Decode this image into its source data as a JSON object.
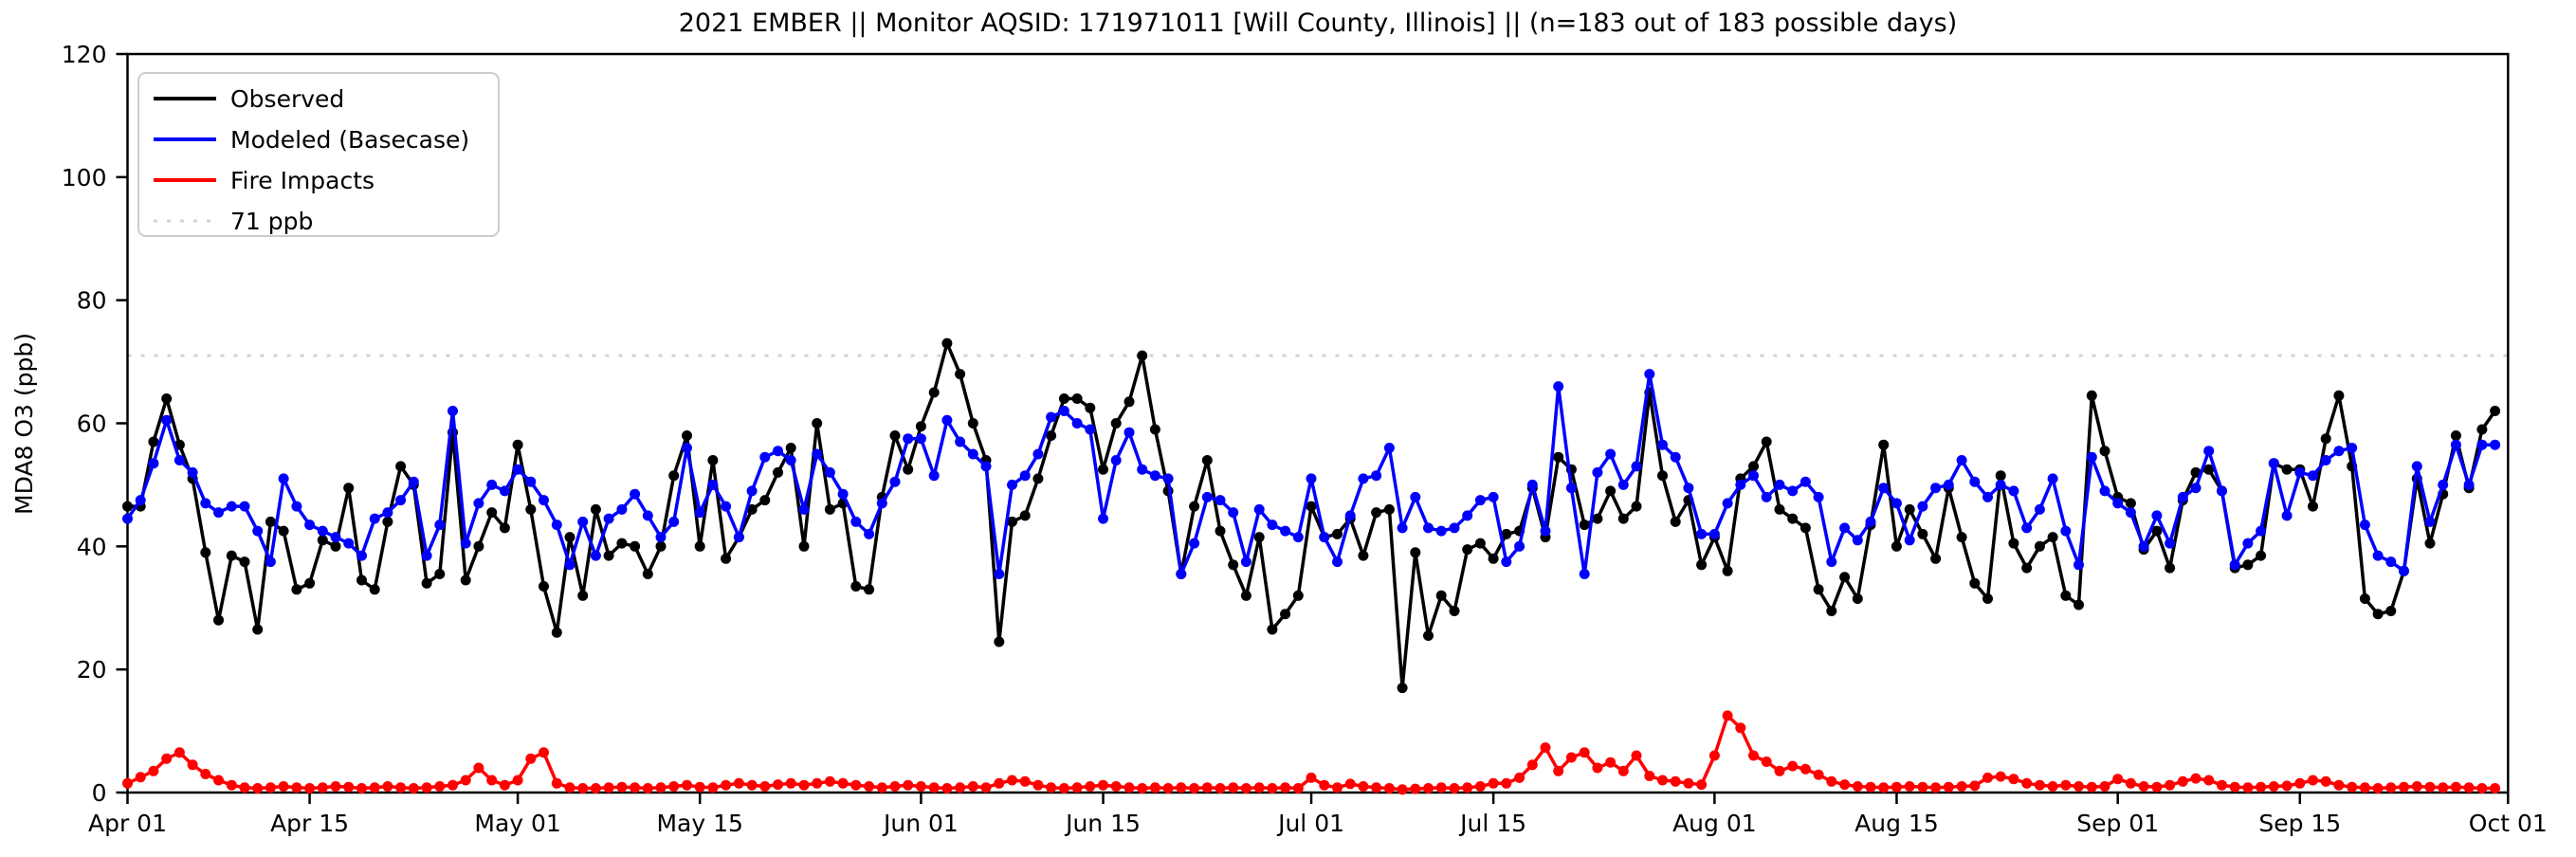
{
  "page": {
    "background": "#ffffff"
  },
  "chart_data": {
    "type": "line",
    "title": "2021 EMBER || Monitor AQSID: 171971011 [Will County, Illinois] || (n=183 out of 183 possible days)",
    "xlabel": "",
    "ylabel": "MDA8 O3 (ppb)",
    "ylim": [
      0,
      120
    ],
    "y_ticks": [
      0,
      20,
      40,
      60,
      80,
      100,
      120
    ],
    "n_days": 183,
    "x_ticks": [
      {
        "day": 0,
        "label": "Apr 01"
      },
      {
        "day": 14,
        "label": "Apr 15"
      },
      {
        "day": 30,
        "label": "May 01"
      },
      {
        "day": 44,
        "label": "May 15"
      },
      {
        "day": 61,
        "label": "Jun 01"
      },
      {
        "day": 75,
        "label": "Jun 15"
      },
      {
        "day": 91,
        "label": "Jul 01"
      },
      {
        "day": 105,
        "label": "Jul 15"
      },
      {
        "day": 122,
        "label": "Aug 01"
      },
      {
        "day": 136,
        "label": "Aug 15"
      },
      {
        "day": 153,
        "label": "Sep 01"
      },
      {
        "day": 167,
        "label": "Sep 15"
      },
      {
        "day": 183,
        "label": "Oct 01"
      }
    ],
    "threshold": {
      "value": 71,
      "label": "71 ppb",
      "color": "#d3d3d3"
    },
    "legend": [
      {
        "label": "Observed",
        "color": "#000000",
        "style": "solid"
      },
      {
        "label": "Modeled (Basecase)",
        "color": "#0000ff",
        "style": "solid"
      },
      {
        "label": "Fire Impacts",
        "color": "#ff0000",
        "style": "solid"
      },
      {
        "label": "71 ppb",
        "color": "#d3d3d3",
        "style": "dotted"
      }
    ],
    "grid": "off",
    "legend_position": "upper-left",
    "series": [
      {
        "name": "Observed",
        "color": "#000000",
        "values": [
          46.5,
          46.5,
          57,
          64,
          56.5,
          51,
          39,
          28,
          38.5,
          37.5,
          26.5,
          44,
          42.5,
          33,
          34,
          41,
          40,
          49.5,
          34.5,
          33,
          44,
          53,
          50,
          34,
          35.5,
          58.5,
          34.5,
          40,
          45.5,
          43,
          56.5,
          46,
          33.5,
          26,
          41.5,
          32,
          46,
          38.5,
          40.5,
          40,
          35.5,
          40,
          51.5,
          58,
          40,
          54,
          38,
          41.5,
          46,
          47.5,
          52,
          56,
          40,
          60,
          46,
          47,
          33.5,
          33,
          48,
          58,
          52.5,
          59.5,
          65,
          73,
          68,
          60,
          54,
          24.5,
          44,
          45,
          51,
          58,
          64,
          64,
          62.5,
          52.5,
          60,
          63.5,
          71,
          59,
          49,
          35.5,
          46.5,
          54,
          42.5,
          37,
          32,
          41.5,
          26.5,
          29,
          32,
          46.5,
          41.5,
          42,
          44.5,
          38.5,
          45.5,
          46,
          17,
          39,
          25.5,
          32,
          29.5,
          39.5,
          40.5,
          38,
          42,
          42.5,
          49.5,
          41.5,
          54.5,
          52.5,
          43.5,
          44.5,
          49,
          44.5,
          46.5,
          65,
          51.5,
          44,
          47.5,
          37,
          41.5,
          36,
          51,
          53,
          57,
          46,
          44.5,
          43,
          33,
          29.5,
          35,
          31.5,
          43.5,
          56.5,
          40,
          46,
          42,
          38,
          49.5,
          41.5,
          34,
          31.5,
          51.5,
          40.5,
          36.5,
          40,
          41.5,
          32,
          30.5,
          64.5,
          55.5,
          48,
          47,
          39.5,
          42.5,
          36.5,
          47.5,
          52,
          52.5,
          49,
          36.5,
          37,
          38.5,
          53.5,
          52.5,
          52.5,
          46.5,
          57.5,
          64.5,
          53,
          31.5,
          29,
          29.5,
          36,
          51,
          40.5,
          48.5,
          58,
          49.5,
          59,
          62
        ]
      },
      {
        "name": "Modeled (Basecase)",
        "color": "#0000ff",
        "values": [
          44.5,
          47.5,
          53.5,
          60.5,
          54,
          52,
          47,
          45.5,
          46.5,
          46.5,
          42.5,
          37.5,
          51,
          46.5,
          43.5,
          42.5,
          41.5,
          40.5,
          38.5,
          44.5,
          45.5,
          47.5,
          50.5,
          38.5,
          43.5,
          62,
          40.5,
          47,
          50,
          49,
          52.5,
          50.5,
          47.5,
          43.5,
          37,
          44,
          38.5,
          44.5,
          46,
          48.5,
          45,
          41.5,
          44,
          56,
          45.5,
          50,
          46.5,
          41.5,
          49,
          54.5,
          55.5,
          54,
          46,
          55,
          52,
          48.5,
          44,
          42,
          47,
          50.5,
          57.5,
          57.5,
          51.5,
          60.5,
          57,
          55,
          53,
          35.5,
          50,
          51.5,
          55,
          61,
          62,
          60,
          59,
          44.5,
          54,
          58.5,
          52.5,
          51.5,
          51,
          35.5,
          40.5,
          48,
          47.5,
          45.5,
          37.5,
          46,
          43.5,
          42.5,
          41.5,
          51,
          41.5,
          37.5,
          45,
          51,
          51.5,
          56,
          43,
          48,
          43,
          42.5,
          43,
          45,
          47.5,
          48,
          37.5,
          40,
          50,
          42.5,
          66,
          49.5,
          35.5,
          52,
          55,
          50,
          53,
          68,
          56.5,
          54.5,
          49.5,
          42,
          42,
          47,
          50,
          51.5,
          48,
          50,
          49,
          50.5,
          48,
          37.5,
          43,
          41,
          44,
          49.5,
          47,
          41,
          46.5,
          49.5,
          50,
          54,
          50.5,
          48,
          50,
          49,
          43,
          46,
          51,
          42.5,
          37,
          54.5,
          49,
          47,
          45.5,
          40,
          45,
          40.5,
          48,
          49.5,
          55.5,
          49,
          37,
          40.5,
          42.5,
          53.5,
          45,
          52,
          51.5,
          54,
          55.5,
          56,
          43.5,
          38.5,
          37.5,
          36,
          53,
          44,
          50,
          56.5,
          50,
          56.5,
          56.5
        ]
      },
      {
        "name": "Fire Impacts",
        "color": "#ff0000",
        "values": [
          1.5,
          2.5,
          3.5,
          5.5,
          6.5,
          4.5,
          3,
          2,
          1.2,
          0.8,
          0.7,
          0.8,
          1,
          0.8,
          0.7,
          0.8,
          1,
          0.9,
          0.7,
          0.8,
          1,
          0.8,
          0.7,
          0.8,
          1,
          1.2,
          2,
          4,
          2,
          1.2,
          2,
          5.5,
          6.5,
          1.5,
          0.8,
          0.7,
          0.7,
          0.8,
          0.9,
          0.8,
          0.7,
          0.8,
          1,
          1.2,
          0.9,
          0.8,
          1.2,
          1.5,
          1.2,
          1,
          1.3,
          1.5,
          1.2,
          1.5,
          1.8,
          1.5,
          1.2,
          1,
          0.8,
          1,
          1.2,
          1,
          0.8,
          0.7,
          0.8,
          1,
          0.8,
          1.5,
          2,
          1.8,
          1.2,
          0.8,
          0.7,
          0.8,
          1,
          1.2,
          1,
          0.8,
          0.7,
          0.8,
          0.7,
          0.8,
          0.7,
          0.8,
          0.7,
          0.8,
          0.7,
          0.8,
          0.7,
          0.8,
          0.7,
          2.4,
          1.2,
          0.8,
          1.4,
          1,
          0.8,
          0.7,
          0.5,
          0.6,
          0.7,
          0.8,
          0.7,
          0.8,
          1,
          1.5,
          1.5,
          2.4,
          4.5,
          7.3,
          3.5,
          5.7,
          6.5,
          4,
          4.9,
          3.5,
          6,
          2.7,
          2,
          1.8,
          1.5,
          1.3,
          6,
          12.5,
          10.5,
          6,
          5,
          3.5,
          4.3,
          3.8,
          2.9,
          1.8,
          1.3,
          1,
          0.9,
          0.8,
          0.9,
          1,
          0.9,
          0.8,
          0.9,
          1,
          1.1,
          2.4,
          2.6,
          2.2,
          1.5,
          1.2,
          1,
          1.2,
          1,
          0.9,
          1,
          2.2,
          1.5,
          1,
          0.9,
          1.2,
          1.8,
          2.3,
          2,
          1.2,
          0.9,
          0.8,
          0.9,
          1,
          1.1,
          1.5,
          2,
          1.8,
          1.2,
          0.9,
          0.8,
          0.7,
          0.8,
          0.9,
          1,
          0.9,
          0.8,
          0.9,
          0.8,
          0.7,
          0.7
        ]
      }
    ]
  }
}
